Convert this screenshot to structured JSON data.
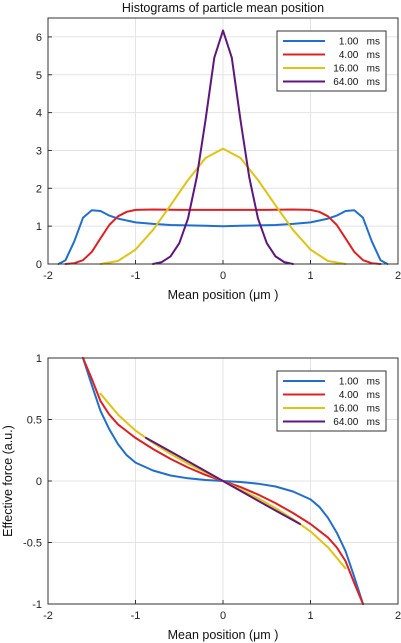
{
  "chart_data": [
    {
      "type": "line",
      "title": "Histograms of particle mean position",
      "xlabel": "Mean position (μm )",
      "ylabel": "",
      "xlim": [
        -2,
        2
      ],
      "ylim": [
        0,
        6.5
      ],
      "xticks": [
        "-2",
        "-1",
        "0",
        "1",
        "2"
      ],
      "yticks": [
        "0",
        "1",
        "2",
        "3",
        "4",
        "5",
        "6"
      ],
      "grid": true,
      "legend_position": "top-right",
      "series": [
        {
          "name": "1.00   ms",
          "color": "#1f6fd0",
          "x": [
            -1.88,
            -1.8,
            -1.7,
            -1.6,
            -1.5,
            -1.4,
            -1.3,
            -1.2,
            -1.0,
            -0.8,
            -0.6,
            -0.4,
            -0.2,
            0,
            0.2,
            0.4,
            0.6,
            0.8,
            1.0,
            1.2,
            1.3,
            1.4,
            1.5,
            1.6,
            1.7,
            1.8,
            1.88
          ],
          "y": [
            0,
            0.1,
            0.6,
            1.22,
            1.42,
            1.4,
            1.28,
            1.2,
            1.1,
            1.06,
            1.03,
            1.02,
            1.01,
            1.0,
            1.01,
            1.02,
            1.03,
            1.06,
            1.1,
            1.2,
            1.28,
            1.4,
            1.42,
            1.22,
            0.6,
            0.1,
            0
          ]
        },
        {
          "name": "4.00   ms",
          "color": "#e02020",
          "x": [
            -1.8,
            -1.7,
            -1.6,
            -1.5,
            -1.4,
            -1.3,
            -1.2,
            -1.1,
            -1.0,
            -0.8,
            -0.5,
            0,
            0.5,
            0.8,
            1.0,
            1.1,
            1.2,
            1.3,
            1.4,
            1.5,
            1.6,
            1.7,
            1.8
          ],
          "y": [
            0,
            0.02,
            0.1,
            0.32,
            0.68,
            1.03,
            1.26,
            1.38,
            1.43,
            1.44,
            1.43,
            1.43,
            1.43,
            1.44,
            1.43,
            1.38,
            1.26,
            1.03,
            0.68,
            0.32,
            0.1,
            0.02,
            0
          ]
        },
        {
          "name": "16.00   ms",
          "color": "#e0c414",
          "x": [
            -1.4,
            -1.2,
            -1.0,
            -0.8,
            -0.6,
            -0.4,
            -0.2,
            0,
            0.2,
            0.4,
            0.6,
            0.8,
            1.0,
            1.2,
            1.4
          ],
          "y": [
            0,
            0.08,
            0.38,
            0.9,
            1.55,
            2.22,
            2.8,
            3.05,
            2.8,
            2.22,
            1.55,
            0.9,
            0.38,
            0.08,
            0
          ]
        },
        {
          "name": "64.00   ms",
          "color": "#5e1680",
          "x": [
            -0.8,
            -0.7,
            -0.6,
            -0.5,
            -0.4,
            -0.3,
            -0.2,
            -0.1,
            0,
            0.1,
            0.2,
            0.3,
            0.4,
            0.5,
            0.6,
            0.7,
            0.8
          ],
          "y": [
            0,
            0.05,
            0.2,
            0.55,
            1.2,
            2.3,
            3.8,
            5.45,
            6.17,
            5.45,
            3.8,
            2.3,
            1.2,
            0.55,
            0.2,
            0.05,
            0
          ]
        }
      ]
    },
    {
      "type": "line",
      "title": "",
      "xlabel": "Mean position (μm )",
      "ylabel": "Effective force (a.u.)",
      "xlim": [
        -2,
        2
      ],
      "ylim": [
        -1,
        1
      ],
      "xticks": [
        "-2",
        "-1",
        "0",
        "1",
        "2"
      ],
      "yticks": [
        "-1",
        "-0.5",
        "0",
        "0.5",
        "1"
      ],
      "grid": true,
      "legend_position": "top-right",
      "series": [
        {
          "name": "1.00   ms",
          "color": "#1f6fd0",
          "x": [
            -1.6,
            -1.5,
            -1.4,
            -1.3,
            -1.2,
            -1.1,
            -1.0,
            -0.8,
            -0.6,
            -0.4,
            -0.2,
            0,
            0.2,
            0.4,
            0.6,
            0.8,
            1.0,
            1.1,
            1.2,
            1.3,
            1.4,
            1.5,
            1.6
          ],
          "y": [
            1.0,
            0.78,
            0.57,
            0.42,
            0.3,
            0.21,
            0.15,
            0.085,
            0.045,
            0.022,
            0.008,
            0,
            -0.008,
            -0.022,
            -0.045,
            -0.085,
            -0.15,
            -0.21,
            -0.3,
            -0.42,
            -0.57,
            -0.78,
            -1.0
          ]
        },
        {
          "name": "4.00   ms",
          "color": "#e02020",
          "x": [
            -1.6,
            -1.5,
            -1.4,
            -1.3,
            -1.2,
            -1.0,
            -0.8,
            -0.6,
            -0.4,
            -0.2,
            0,
            0.2,
            0.4,
            0.6,
            0.8,
            1.0,
            1.2,
            1.3,
            1.4,
            1.5,
            1.6
          ],
          "y": [
            1.0,
            0.83,
            0.65,
            0.54,
            0.46,
            0.35,
            0.26,
            0.18,
            0.11,
            0.05,
            0,
            -0.05,
            -0.11,
            -0.18,
            -0.26,
            -0.35,
            -0.46,
            -0.54,
            -0.65,
            -0.83,
            -1.0
          ]
        },
        {
          "name": "16.00   ms",
          "color": "#e0c414",
          "x": [
            -1.4,
            -1.2,
            -1.0,
            -0.8,
            -0.6,
            -0.4,
            -0.2,
            0,
            0.2,
            0.4,
            0.6,
            0.8,
            1.0,
            1.2,
            1.4
          ],
          "y": [
            0.71,
            0.54,
            0.41,
            0.31,
            0.22,
            0.14,
            0.07,
            0,
            -0.07,
            -0.14,
            -0.22,
            -0.31,
            -0.41,
            -0.54,
            -0.71
          ]
        },
        {
          "name": "64.00   ms",
          "color": "#5e1680",
          "x": [
            -0.88,
            -0.6,
            -0.3,
            0,
            0.3,
            0.6,
            0.88
          ],
          "y": [
            0.35,
            0.24,
            0.12,
            0,
            -0.12,
            -0.24,
            -0.35
          ]
        }
      ]
    }
  ]
}
